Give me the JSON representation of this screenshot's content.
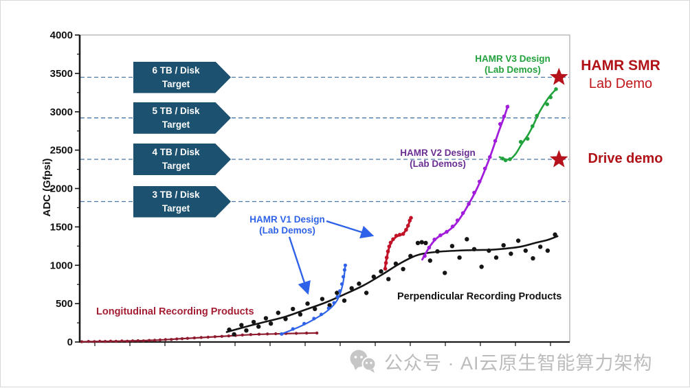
{
  "labels": {
    "y_axis_title": "ADC (Gfpsi)",
    "longitudinal": "Longitudinal Recording Products",
    "perpendicular": "Perpendicular Recording Products",
    "hamr_v1_line1": "HAMR V1 Design",
    "hamr_v1_line2": "(Lab Demos)",
    "hamr_v2_line1": "HAMR V2 Design",
    "hamr_v2_line2": "(Lab Demos)",
    "hamr_v3_line1": "HAMR V3 Design",
    "hamr_v3_line2": "(Lab Demos)",
    "hamr_smr_line1": "HAMR SMR",
    "hamr_smr_line2": "Lab Demo",
    "drive_demo": "Drive demo"
  },
  "watermark": {
    "icon": "wechat-icon",
    "text": "公众号 · AI云原生智能算力架构"
  },
  "colors": {
    "longitudinal": "#8E1B2E",
    "perpendicular": "#151515",
    "hamr_v1_blue": "#2E62E8",
    "hamr_v1_red": "#C11227",
    "hamr_v2_purple": "#A11CDB",
    "hamr_v2_label": "#6B2D91",
    "hamr_v3_green": "#22A23C",
    "target_box": "#1C5170",
    "dashed_line": "#4878A8",
    "star_red": "#B5121B",
    "smr_text": "#B01217",
    "lab_demo_text": "#C11419"
  },
  "chart_data": {
    "type": "scatter",
    "title": "",
    "xlabel": "",
    "ylabel": "ADC (Gfpsi)",
    "ylim": [
      0,
      4000
    ],
    "ytick_major_step": 500,
    "ytick_minor_step": 250,
    "x_axis": {
      "labeled": false,
      "range": [
        0,
        100
      ],
      "note": "timeline axis with unlabeled minor ticks"
    },
    "grid": false,
    "legend": "inline annotations",
    "target_lines": [
      {
        "value": 3450,
        "label_line1": "6 TB / Disk",
        "label_line2": "Target"
      },
      {
        "value": 2920,
        "label_line1": "5 TB / Disk",
        "label_line2": "Target"
      },
      {
        "value": 2380,
        "label_line1": "4 TB / Disk",
        "label_line2": "Target"
      },
      {
        "value": 1830,
        "label_line1": "3 TB / Disk",
        "label_line2": "Target"
      }
    ],
    "series": [
      {
        "name": "Longitudinal Recording Products",
        "color": "#8E1B2E",
        "dot_r": 2.2,
        "line_w": 2.2,
        "line": [
          [
            0.4,
            4
          ],
          [
            5,
            8
          ],
          [
            10,
            13
          ],
          [
            15,
            22
          ],
          [
            20,
            40
          ],
          [
            25,
            58
          ],
          [
            30,
            77
          ],
          [
            35,
            96
          ],
          [
            40,
            106
          ],
          [
            44,
            112
          ],
          [
            48.4,
            117
          ]
        ],
        "points": [
          [
            0.4,
            4
          ],
          [
            1.8,
            7
          ],
          [
            3,
            5
          ],
          [
            4.1,
            9
          ],
          [
            5.2,
            7
          ],
          [
            6.3,
            11
          ],
          [
            7.4,
            9
          ],
          [
            8.6,
            13
          ],
          [
            9.7,
            11
          ],
          [
            10.8,
            15
          ],
          [
            11.9,
            17
          ],
          [
            13,
            15
          ],
          [
            14.2,
            21
          ],
          [
            15.3,
            23
          ],
          [
            16.4,
            27
          ],
          [
            17.5,
            31
          ],
          [
            18.7,
            33
          ],
          [
            19.8,
            39
          ],
          [
            20.9,
            43
          ],
          [
            22,
            47
          ],
          [
            23.4,
            53
          ],
          [
            24.8,
            59
          ],
          [
            26.2,
            63
          ],
          [
            27.6,
            69
          ],
          [
            29,
            73
          ],
          [
            30.4,
            79
          ],
          [
            31.8,
            85
          ],
          [
            33.2,
            91
          ],
          [
            34.9,
            97
          ],
          [
            36.6,
            101
          ],
          [
            38.3,
            105
          ],
          [
            40,
            107
          ],
          [
            42.1,
            111
          ],
          [
            44.2,
            113
          ],
          [
            46.3,
            115
          ],
          [
            48.4,
            117
          ]
        ]
      },
      {
        "name": "Perpendicular Recording Products",
        "color": "#151515",
        "dot_r": 3.2,
        "line_w": 2.6,
        "line": [
          [
            30,
            130
          ],
          [
            34,
            200
          ],
          [
            38,
            265
          ],
          [
            42,
            330
          ],
          [
            46,
            420
          ],
          [
            50,
            510
          ],
          [
            54,
            620
          ],
          [
            58,
            740
          ],
          [
            62,
            890
          ],
          [
            65,
            1010
          ],
          [
            68,
            1110
          ],
          [
            70,
            1150
          ],
          [
            73,
            1175
          ],
          [
            77,
            1190
          ],
          [
            81,
            1198
          ],
          [
            84,
            1202
          ],
          [
            87,
            1218
          ],
          [
            90,
            1242
          ],
          [
            93,
            1292
          ],
          [
            95.5,
            1330
          ],
          [
            97.5,
            1378
          ]
        ],
        "points": [
          [
            30.5,
            160
          ],
          [
            31.5,
            100
          ],
          [
            33,
            220
          ],
          [
            34,
            150
          ],
          [
            35.5,
            260
          ],
          [
            36.5,
            200
          ],
          [
            38,
            310
          ],
          [
            39,
            240
          ],
          [
            40.5,
            380
          ],
          [
            42,
            300
          ],
          [
            43.5,
            430
          ],
          [
            45,
            360
          ],
          [
            46.5,
            500
          ],
          [
            48,
            430
          ],
          [
            49.5,
            560
          ],
          [
            51,
            480
          ],
          [
            52.5,
            640
          ],
          [
            54,
            540
          ],
          [
            55.5,
            700
          ],
          [
            57,
            760
          ],
          [
            58.5,
            640
          ],
          [
            60,
            850
          ],
          [
            61.5,
            920
          ],
          [
            63,
            820
          ],
          [
            64.5,
            1020
          ],
          [
            66,
            950
          ],
          [
            67.5,
            1120
          ],
          [
            69,
            1290
          ],
          [
            69.8,
            1300
          ],
          [
            70.6,
            1290
          ],
          [
            71.5,
            1060
          ],
          [
            73,
            1180
          ],
          [
            74.5,
            900
          ],
          [
            76,
            1250
          ],
          [
            77.5,
            1100
          ],
          [
            79,
            1340
          ],
          [
            80.5,
            1210
          ],
          [
            82,
            980
          ],
          [
            83.5,
            1190
          ],
          [
            85,
            1100
          ],
          [
            86.5,
            1260
          ],
          [
            88,
            1150
          ],
          [
            89.5,
            1320
          ],
          [
            91,
            1190
          ],
          [
            92.5,
            1090
          ],
          [
            94,
            1240
          ],
          [
            95.5,
            1190
          ],
          [
            97,
            1400
          ]
        ]
      },
      {
        "name": "HAMR V1 Design (Lab Demos) - blue segment",
        "color": "#2E62E8",
        "dot_r": 2.6,
        "line_w": 2.2,
        "line": [
          [
            41,
            100
          ],
          [
            44,
            175
          ],
          [
            46.5,
            250
          ],
          [
            48.5,
            320
          ],
          [
            50,
            380
          ],
          [
            51.5,
            460
          ],
          [
            52.5,
            540
          ],
          [
            53.2,
            640
          ],
          [
            53.7,
            760
          ],
          [
            54,
            880
          ],
          [
            54.2,
            995
          ]
        ],
        "points": [
          [
            41.2,
            105
          ],
          [
            43.5,
            170
          ],
          [
            45.8,
            240
          ],
          [
            47.8,
            305
          ],
          [
            49.3,
            360
          ],
          [
            50.8,
            440
          ],
          [
            51.9,
            510
          ],
          [
            52.6,
            590
          ],
          [
            53.1,
            665
          ],
          [
            53.5,
            755
          ],
          [
            53.8,
            850
          ],
          [
            54.05,
            940
          ],
          [
            54.2,
            1000
          ]
        ]
      },
      {
        "name": "HAMR V1 Design (Lab Demos) - red segment",
        "color": "#C11227",
        "dot_r": 2.8,
        "line_w": 3,
        "line": [
          [
            62.3,
            950
          ],
          [
            62.5,
            1040
          ],
          [
            62.8,
            1140
          ],
          [
            63.2,
            1240
          ],
          [
            63.8,
            1320
          ],
          [
            64.7,
            1375
          ],
          [
            65.7,
            1400
          ],
          [
            66.5,
            1450
          ],
          [
            67.1,
            1530
          ],
          [
            67.6,
            1620
          ]
        ],
        "points": [
          [
            62.35,
            955
          ],
          [
            62.5,
            1030
          ],
          [
            62.65,
            1100
          ],
          [
            62.9,
            1180
          ],
          [
            63.15,
            1245
          ],
          [
            63.45,
            1295
          ],
          [
            63.95,
            1340
          ],
          [
            64.6,
            1385
          ],
          [
            65.3,
            1398
          ],
          [
            66,
            1408
          ],
          [
            66.6,
            1462
          ],
          [
            67,
            1515
          ],
          [
            67.35,
            1582
          ],
          [
            67.6,
            1618
          ]
        ]
      },
      {
        "name": "HAMR V2 Design (Lab Demos)",
        "color": "#A11CDB",
        "dot_r": 2.8,
        "line_w": 2.8,
        "line": [
          [
            69.9,
            1075
          ],
          [
            71.5,
            1250
          ],
          [
            73,
            1360
          ],
          [
            75,
            1440
          ],
          [
            76.5,
            1520
          ],
          [
            78,
            1650
          ],
          [
            79.5,
            1810
          ],
          [
            81,
            1990
          ],
          [
            82.5,
            2210
          ],
          [
            84,
            2460
          ],
          [
            85.5,
            2740
          ],
          [
            86.6,
            2930
          ],
          [
            87.4,
            3080
          ]
        ],
        "points": [
          [
            70.4,
            1120
          ],
          [
            71.3,
            1230
          ],
          [
            72.4,
            1335
          ],
          [
            73.6,
            1390
          ],
          [
            74.9,
            1435
          ],
          [
            76.1,
            1505
          ],
          [
            77.1,
            1585
          ],
          [
            78.2,
            1680
          ],
          [
            79.4,
            1800
          ],
          [
            80.5,
            1945
          ],
          [
            81.6,
            2090
          ],
          [
            82.7,
            2260
          ],
          [
            83.7,
            2410
          ],
          [
            84.8,
            2620
          ],
          [
            85.8,
            2840
          ],
          [
            86.6,
            2940
          ],
          [
            87.3,
            3065
          ]
        ]
      },
      {
        "name": "HAMR V3 Design (Lab Demos)",
        "color": "#22A23C",
        "dot_r": 2.8,
        "line_w": 2.6,
        "line": [
          [
            85.7,
            2410
          ],
          [
            86.6,
            2385
          ],
          [
            87.8,
            2380
          ],
          [
            89,
            2455
          ],
          [
            90.2,
            2580
          ],
          [
            91.5,
            2700
          ],
          [
            92.6,
            2830
          ],
          [
            93.6,
            2970
          ],
          [
            94.8,
            3100
          ],
          [
            96,
            3210
          ],
          [
            97.3,
            3300
          ]
        ],
        "points": [
          [
            86.3,
            2390
          ],
          [
            86.9,
            2368
          ],
          [
            87.8,
            2382
          ],
          [
            90,
            2608
          ],
          [
            91.4,
            2648
          ],
          [
            92.4,
            2812
          ],
          [
            93.3,
            2948
          ],
          [
            95.4,
            3098
          ],
          [
            96.1,
            3188
          ],
          [
            97.2,
            3295
          ]
        ]
      }
    ],
    "markers": [
      {
        "type": "star",
        "x": 97.8,
        "value": 3450,
        "label": "HAMR SMR Lab Demo"
      },
      {
        "type": "star",
        "x": 97.8,
        "value": 2378,
        "label": "Drive demo"
      }
    ]
  }
}
